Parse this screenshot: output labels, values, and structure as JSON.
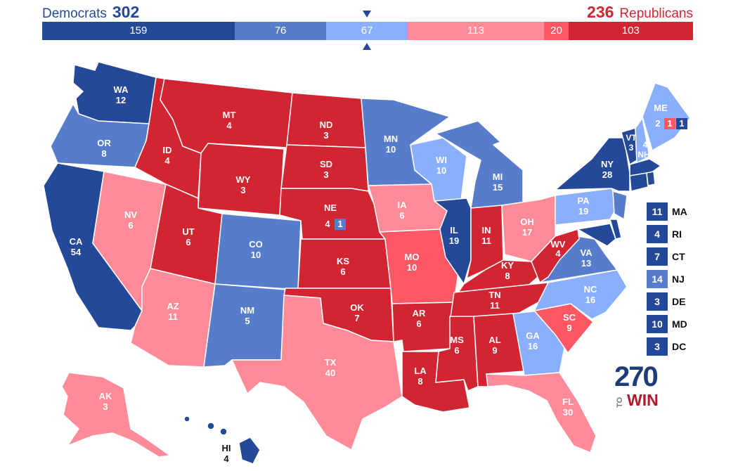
{
  "header": {
    "dem_label": "Democrats",
    "dem_total": "302",
    "rep_total": "236",
    "rep_label": "Republicans"
  },
  "colors": {
    "safe_dem": "#244999",
    "likely_dem": "#577ccc",
    "lean_dem": "#8aafff",
    "lean_rep": "#ff8b98",
    "likely_rep": "#ff5865",
    "safe_rep": "#d22532"
  },
  "bar": [
    {
      "label": "159",
      "value": 159,
      "color": "#244999"
    },
    {
      "label": "76",
      "value": 76,
      "color": "#577ccc"
    },
    {
      "label": "67",
      "value": 67,
      "color": "#8aafff"
    },
    {
      "label": "113",
      "value": 113,
      "color": "#ff8b98"
    },
    {
      "label": "20",
      "value": 20,
      "color": "#ff5865"
    },
    {
      "label": "103",
      "value": 103,
      "color": "#d22532"
    }
  ],
  "states": {
    "WA": "12",
    "OR": "8",
    "CA": "54",
    "NV": "6",
    "ID": "4",
    "MT": "4",
    "WY": "3",
    "UT": "6",
    "AZ": "11",
    "CO": "10",
    "NM": "5",
    "ND": "3",
    "SD": "3",
    "NE": "4",
    "NE_cd": "1",
    "KS": "6",
    "OK": "7",
    "TX": "40",
    "MN": "10",
    "IA": "6",
    "MO": "10",
    "AR": "6",
    "LA": "8",
    "WI": "10",
    "IL": "19",
    "MI": "15",
    "IN": "11",
    "OH": "17",
    "KY": "8",
    "TN": "11",
    "MS": "6",
    "AL": "9",
    "GA": "16",
    "FL": "30",
    "SC": "9",
    "NC": "16",
    "VA": "13",
    "WV": "4",
    "PA": "19",
    "NY": "28",
    "VT": "3",
    "NH": "4",
    "ME": "2",
    "ME_cd1": "1",
    "ME_cd2": "1",
    "AK": "3",
    "HI": "4"
  },
  "legend": [
    {
      "value": "11",
      "state": "MA",
      "color": "#244999"
    },
    {
      "value": "4",
      "state": "RI",
      "color": "#244999"
    },
    {
      "value": "7",
      "state": "CT",
      "color": "#244999"
    },
    {
      "value": "14",
      "state": "NJ",
      "color": "#577ccc"
    },
    {
      "value": "3",
      "state": "DE",
      "color": "#244999"
    },
    {
      "value": "10",
      "state": "MD",
      "color": "#244999"
    },
    {
      "value": "3",
      "state": "DC",
      "color": "#244999"
    }
  ],
  "logo": {
    "number": "270",
    "to": "TO",
    "win": "WIN"
  }
}
